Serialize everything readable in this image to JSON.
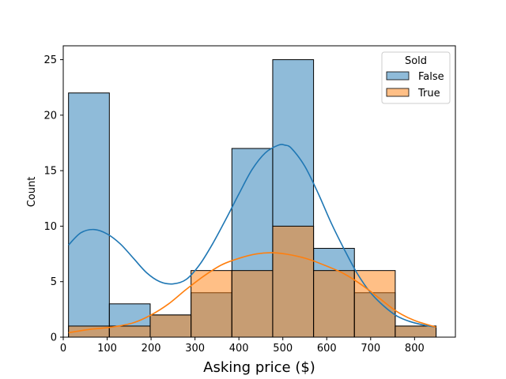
{
  "chart_data": {
    "type": "histogram",
    "title": "",
    "xlabel": "Asking price ($)",
    "ylabel": "Count",
    "xlim": [
      0,
      893
    ],
    "ylim": [
      0,
      26.25
    ],
    "xticks": [
      0,
      100,
      200,
      300,
      400,
      500,
      600,
      700,
      800
    ],
    "yticks": [
      0,
      5,
      10,
      15,
      20,
      25
    ],
    "bin_edges": [
      12,
      105,
      198,
      291,
      384,
      477,
      570,
      663,
      756,
      849
    ],
    "legend": {
      "title": "Sold",
      "position": "top-right"
    },
    "series": [
      {
        "name": "False",
        "color": "#1f77b4",
        "counts": [
          22,
          3,
          2,
          4,
          17,
          25,
          8,
          4,
          1
        ],
        "kde": {
          "x": [
            12,
            40,
            70,
            100,
            130,
            160,
            190,
            220,
            250,
            280,
            310,
            340,
            370,
            400,
            430,
            460,
            490,
            505,
            520,
            550,
            580,
            610,
            640,
            670,
            700,
            730,
            760,
            790,
            820,
            849
          ],
          "y": [
            8.3,
            9.4,
            9.7,
            9.3,
            8.4,
            7.1,
            5.8,
            5.0,
            4.8,
            5.2,
            6.5,
            8.4,
            10.6,
            12.9,
            15.1,
            16.6,
            17.3,
            17.3,
            17.0,
            15.4,
            13.0,
            10.3,
            7.9,
            5.7,
            4.0,
            2.8,
            1.9,
            1.4,
            1.1,
            0.9
          ]
        }
      },
      {
        "name": "True",
        "color": "#ff7f0e",
        "counts": [
          1,
          1,
          2,
          6,
          6,
          10,
          6,
          6,
          1
        ],
        "kde": {
          "x": [
            12,
            60,
            110,
            160,
            200,
            240,
            280,
            320,
            360,
            400,
            440,
            480,
            520,
            560,
            600,
            640,
            680,
            720,
            760,
            800,
            849
          ],
          "y": [
            0.4,
            0.7,
            0.9,
            1.3,
            2.0,
            3.0,
            4.3,
            5.5,
            6.5,
            7.1,
            7.5,
            7.6,
            7.4,
            7.0,
            6.4,
            5.7,
            4.7,
            3.5,
            2.3,
            1.5,
            0.9
          ]
        }
      }
    ]
  }
}
